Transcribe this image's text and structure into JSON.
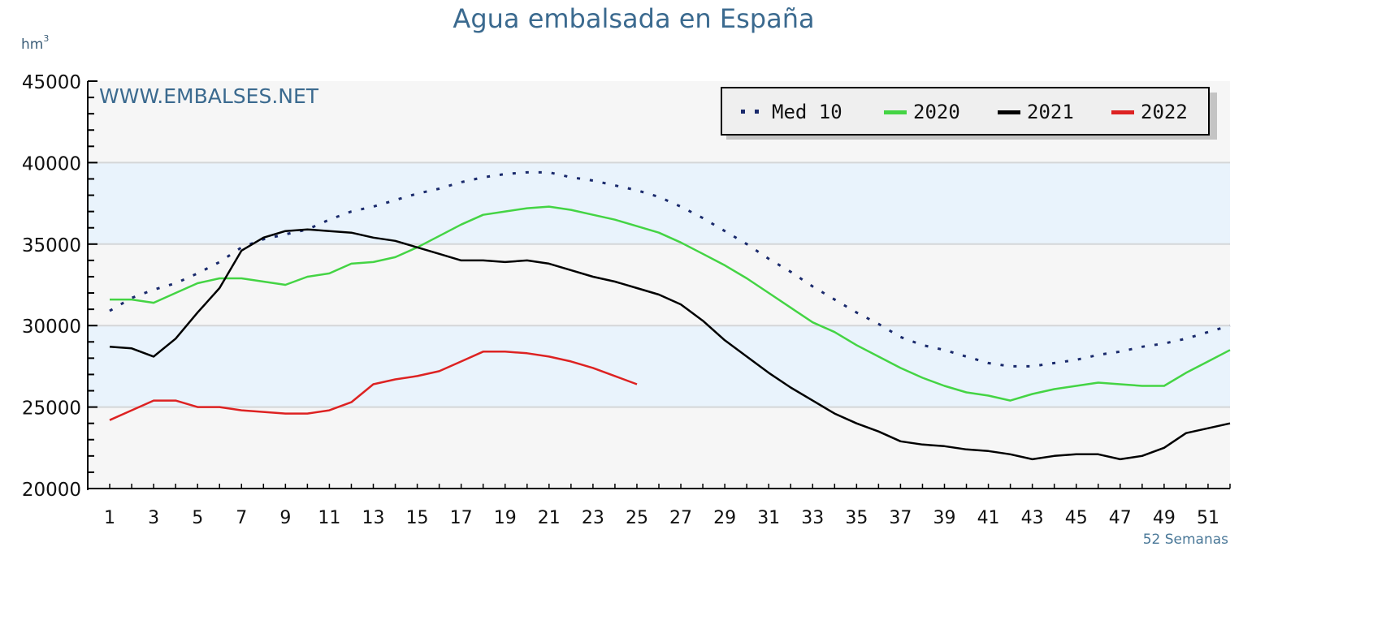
{
  "chart_data": {
    "type": "line",
    "title": "Agua embalsada en España",
    "ylabel": "hm",
    "ylabel_sup": "3",
    "xlabel": "52 Semanas",
    "watermark": "WWW.EMBALSES.NET",
    "ylim": [
      20000,
      45000
    ],
    "yticks": [
      "20000",
      "25000",
      "30000",
      "35000",
      "40000",
      "45000"
    ],
    "xlim": [
      0,
      52
    ],
    "xticks": [
      "1",
      "3",
      "5",
      "7",
      "9",
      "11",
      "13",
      "15",
      "17",
      "19",
      "21",
      "23",
      "25",
      "27",
      "29",
      "31",
      "33",
      "35",
      "37",
      "39",
      "41",
      "43",
      "45",
      "47",
      "49",
      "51"
    ],
    "grid": true,
    "legend_position": "top-right",
    "series": [
      {
        "name": "Med 10",
        "color": "#1a2a6c",
        "style": "dotted",
        "x": [
          1,
          2,
          3,
          4,
          5,
          6,
          7,
          8,
          9,
          10,
          11,
          12,
          13,
          14,
          15,
          16,
          17,
          18,
          19,
          20,
          21,
          22,
          23,
          24,
          25,
          26,
          27,
          28,
          29,
          30,
          31,
          32,
          33,
          34,
          35,
          36,
          37,
          38,
          39,
          40,
          41,
          42,
          43,
          44,
          45,
          46,
          47,
          48,
          49,
          50,
          51,
          52
        ],
        "values": [
          30900,
          31700,
          32200,
          32600,
          33200,
          33900,
          34800,
          35300,
          35600,
          35900,
          36500,
          37000,
          37300,
          37700,
          38100,
          38400,
          38800,
          39100,
          39300,
          39400,
          39400,
          39100,
          38900,
          38600,
          38300,
          37900,
          37300,
          36600,
          35800,
          35000,
          34100,
          33300,
          32400,
          31600,
          30800,
          30100,
          29300,
          28800,
          28500,
          28100,
          27700,
          27500,
          27500,
          27700,
          27900,
          28200,
          28400,
          28700,
          28900,
          29200,
          29600,
          30000
        ]
      },
      {
        "name": "2020",
        "color": "#44d444",
        "style": "solid",
        "x": [
          1,
          2,
          3,
          4,
          5,
          6,
          7,
          8,
          9,
          10,
          11,
          12,
          13,
          14,
          15,
          16,
          17,
          18,
          19,
          20,
          21,
          22,
          23,
          24,
          25,
          26,
          27,
          28,
          29,
          30,
          31,
          32,
          33,
          34,
          35,
          36,
          37,
          38,
          39,
          40,
          41,
          42,
          43,
          44,
          45,
          46,
          47,
          48,
          49,
          50,
          51,
          52
        ],
        "values": [
          31600,
          31600,
          31400,
          32000,
          32600,
          32900,
          32900,
          32700,
          32500,
          33000,
          33200,
          33800,
          33900,
          34200,
          34800,
          35500,
          36200,
          36800,
          37000,
          37200,
          37300,
          37100,
          36800,
          36500,
          36100,
          35700,
          35100,
          34400,
          33700,
          32900,
          32000,
          31100,
          30200,
          29600,
          28800,
          28100,
          27400,
          26800,
          26300,
          25900,
          25700,
          25400,
          25800,
          26100,
          26300,
          26500,
          26400,
          26300,
          26300,
          27100,
          27800,
          28500
        ]
      },
      {
        "name": "2021",
        "color": "#000000",
        "style": "solid",
        "x": [
          1,
          2,
          3,
          4,
          5,
          6,
          7,
          8,
          9,
          10,
          11,
          12,
          13,
          14,
          15,
          16,
          17,
          18,
          19,
          20,
          21,
          22,
          23,
          24,
          25,
          26,
          27,
          28,
          29,
          30,
          31,
          32,
          33,
          34,
          35,
          36,
          37,
          38,
          39,
          40,
          41,
          42,
          43,
          44,
          45,
          46,
          47,
          48,
          49,
          50,
          51,
          52
        ],
        "values": [
          28700,
          28600,
          28100,
          29200,
          30800,
          32300,
          34600,
          35400,
          35800,
          35900,
          35800,
          35700,
          35400,
          35200,
          34800,
          34400,
          34000,
          34000,
          33900,
          34000,
          33800,
          33400,
          33000,
          32700,
          32300,
          31900,
          31300,
          30300,
          29100,
          28100,
          27100,
          26200,
          25400,
          24600,
          24000,
          23500,
          22900,
          22700,
          22600,
          22400,
          22300,
          22100,
          21800,
          22000,
          22100,
          22100,
          21800,
          22000,
          22500,
          23400,
          23700,
          24000
        ]
      },
      {
        "name": "2022",
        "color": "#dd2222",
        "style": "solid",
        "x": [
          1,
          2,
          3,
          4,
          5,
          6,
          7,
          8,
          9,
          10,
          11,
          12,
          13,
          14,
          15,
          16,
          17,
          18,
          19,
          20,
          21,
          22,
          23,
          24,
          25
        ],
        "values": [
          24200,
          24800,
          25400,
          25400,
          25000,
          25000,
          24800,
          24700,
          24600,
          24600,
          24800,
          25300,
          26400,
          26700,
          26900,
          27200,
          27800,
          28400,
          28400,
          28300,
          28100,
          27800,
          27400,
          26900,
          26400
        ]
      }
    ]
  }
}
